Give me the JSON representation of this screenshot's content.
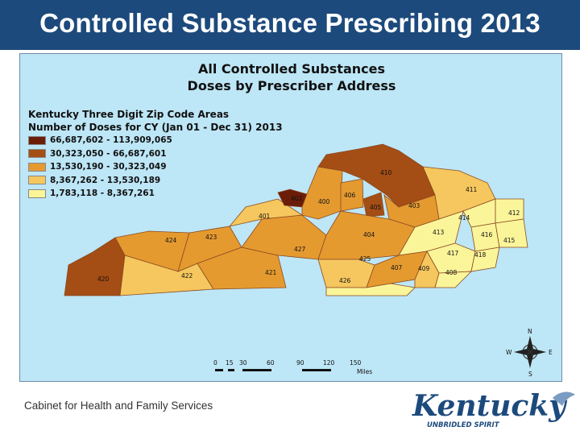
{
  "slide": {
    "title": "Controlled Substance Prescribing 2013",
    "footer": "Cabinet for Health and Family Services"
  },
  "map": {
    "title_lines": [
      "All Controlled Substances",
      "Doses by Prescriber Address"
    ],
    "legend": {
      "heading_lines": [
        "Kentucky Three Digit Zip Code Areas",
        "Number of Doses for CY (Jan 01 - Dec 31) 2013"
      ],
      "classes": [
        {
          "label": "66,687,602 - 113,909,065",
          "color": "#6b1d08"
        },
        {
          "label": "30,323,050 - 66,687,601",
          "color": "#a44d14"
        },
        {
          "label": "13,530,190 - 30,323,049",
          "color": "#e59a30"
        },
        {
          "label": "8,367,262 - 13,530,189",
          "color": "#f5c75e"
        },
        {
          "label": "1,783,118 - 8,367,261",
          "color": "#fbf59a"
        }
      ]
    },
    "zip_labels": [
      "402",
      "400",
      "406",
      "410",
      "405",
      "403",
      "411",
      "401",
      "414",
      "412",
      "424",
      "423",
      "404",
      "413",
      "416",
      "415",
      "427",
      "417",
      "418",
      "420",
      "422",
      "421",
      "425",
      "407",
      "409",
      "408",
      "426"
    ],
    "scale": {
      "ticks": [
        "0",
        "15",
        "30",
        "60",
        "90",
        "120",
        "150"
      ],
      "unit": "Miles"
    },
    "compass": [
      "N",
      "W",
      "E",
      "S"
    ]
  },
  "logo": {
    "name": "Kentucky",
    "tagline": "UNBRIDLED SPIRIT"
  },
  "colors": {
    "header_bg": "#1d4a7c",
    "water": "#bde6f6"
  }
}
